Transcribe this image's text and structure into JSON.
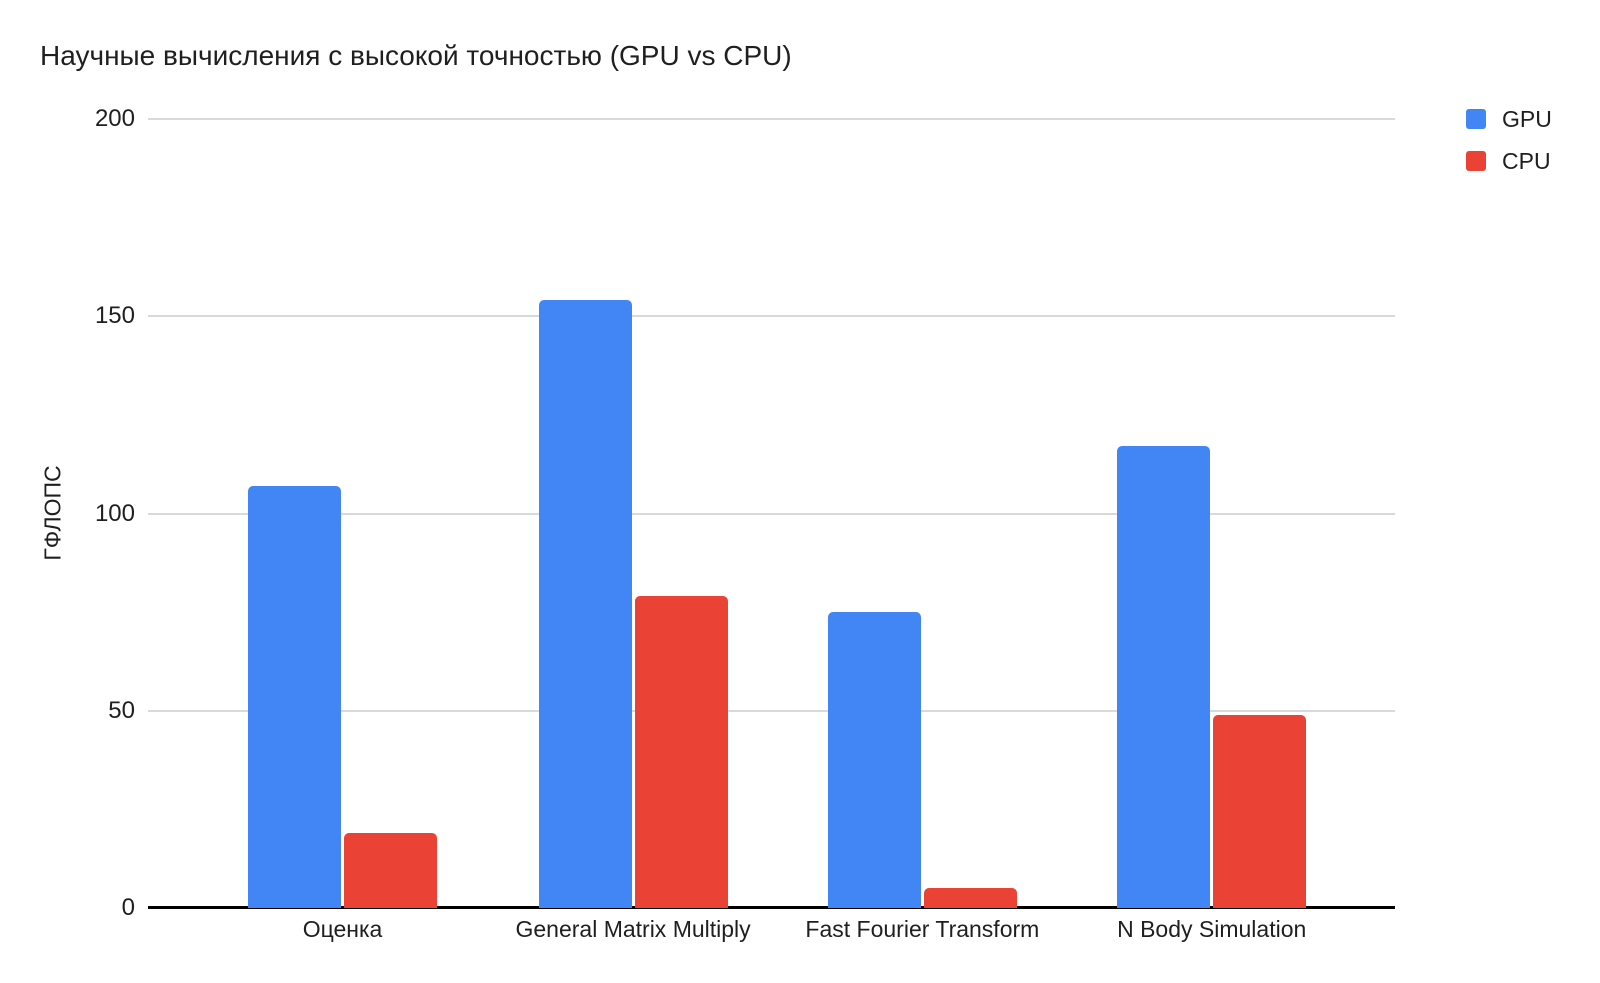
{
  "chart_data": {
    "type": "bar",
    "title": "Научные вычисления с высокой точностью (GPU vs CPU)",
    "ylabel": "ГФЛОПС",
    "xlabel": "",
    "ylim": [
      0,
      200
    ],
    "yticks": [
      0,
      50,
      100,
      150,
      200
    ],
    "grid": true,
    "legend_position": "top-right",
    "categories": [
      "Оценка",
      "General Matrix Multiply",
      "Fast Fourier Transform",
      "N Body Simulation"
    ],
    "series": [
      {
        "name": "GPU",
        "color": "#4285F4",
        "values": [
          107,
          154,
          75,
          117
        ]
      },
      {
        "name": "CPU",
        "color": "#EA4335",
        "values": [
          19,
          79,
          5,
          49
        ]
      }
    ]
  },
  "colors": {
    "background": "#ffffff",
    "gridline": "#d9d9d9",
    "axis_line": "#000000",
    "text": "#1f1f1f"
  }
}
